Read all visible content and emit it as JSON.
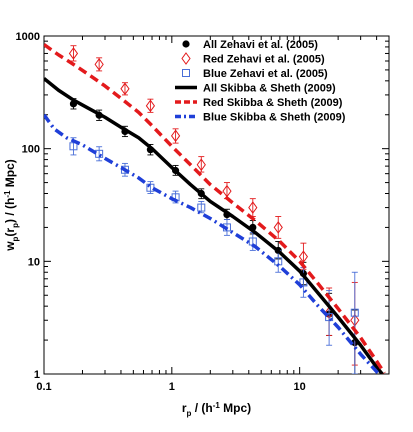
{
  "chart_data": {
    "type": "line",
    "xscale": "log",
    "yscale": "log",
    "xlim": [
      0.1,
      50
    ],
    "ylim": [
      1,
      1000
    ],
    "xlabel": {
      "main": "r",
      "sub": "p",
      "rest": " / (h",
      "sup": "-1",
      "end": " Mpc)"
    },
    "ylabel": {
      "p1": "w",
      "sub1": "p",
      "p2": "(r",
      "sub2": "p",
      "p3": ") / (h",
      "sup": "-1",
      "p4": " Mpc)"
    },
    "xticks": [
      {
        "v": 0.1,
        "label": "0.1"
      },
      {
        "v": 1,
        "label": "1"
      },
      {
        "v": 10,
        "label": "10"
      }
    ],
    "yticks": [
      {
        "v": 1,
        "label": "1"
      },
      {
        "v": 10,
        "label": "10"
      },
      {
        "v": 100,
        "label": "100"
      },
      {
        "v": 1000,
        "label": "1000"
      }
    ],
    "legend_position": "top-right",
    "series": [
      {
        "name": "All Zehavi et al. (2005)",
        "kind": "points",
        "marker": "circle",
        "color": "#000000",
        "points": [
          {
            "x": 0.17,
            "y": 250,
            "lo": 225,
            "hi": 278
          },
          {
            "x": 0.27,
            "y": 198,
            "lo": 178,
            "hi": 220
          },
          {
            "x": 0.43,
            "y": 142,
            "lo": 128,
            "hi": 158
          },
          {
            "x": 0.68,
            "y": 98,
            "lo": 88,
            "hi": 109
          },
          {
            "x": 1.07,
            "y": 64,
            "lo": 58,
            "hi": 71
          },
          {
            "x": 1.7,
            "y": 40,
            "lo": 36,
            "hi": 44
          },
          {
            "x": 2.7,
            "y": 26,
            "lo": 23.5,
            "hi": 29
          },
          {
            "x": 4.3,
            "y": 20,
            "lo": 17.5,
            "hi": 23
          },
          {
            "x": 6.8,
            "y": 12.5,
            "lo": 10.5,
            "hi": 15
          },
          {
            "x": 10.7,
            "y": 7.8,
            "lo": 6.2,
            "hi": 9.8
          },
          {
            "x": 17,
            "y": 3.4,
            "lo": 2.2,
            "hi": 5.2
          },
          {
            "x": 27,
            "y": 1.9,
            "lo": 1,
            "hi": 3.7
          }
        ]
      },
      {
        "name": "Red Zehavi et al. (2005)",
        "kind": "points",
        "marker": "diamond",
        "color": "#e31a1c",
        "points": [
          {
            "x": 0.17,
            "y": 700,
            "lo": 600,
            "hi": 820
          },
          {
            "x": 0.27,
            "y": 560,
            "lo": 490,
            "hi": 640
          },
          {
            "x": 0.43,
            "y": 340,
            "lo": 300,
            "hi": 385
          },
          {
            "x": 0.68,
            "y": 240,
            "lo": 210,
            "hi": 275
          },
          {
            "x": 1.07,
            "y": 130,
            "lo": 112,
            "hi": 150
          },
          {
            "x": 1.7,
            "y": 72,
            "lo": 62,
            "hi": 85
          },
          {
            "x": 2.7,
            "y": 42,
            "lo": 36,
            "hi": 50
          },
          {
            "x": 4.3,
            "y": 30,
            "lo": 25,
            "hi": 36
          },
          {
            "x": 6.8,
            "y": 20,
            "lo": 16,
            "hi": 25
          },
          {
            "x": 10.7,
            "y": 11,
            "lo": 8.5,
            "hi": 14.5
          },
          {
            "x": 17,
            "y": 3.5,
            "lo": 2.2,
            "hi": 5.8
          },
          {
            "x": 27,
            "y": 3,
            "lo": 1.2,
            "hi": 6.5
          }
        ]
      },
      {
        "name": "Blue Zehavi et al. (2005)",
        "kind": "points",
        "marker": "square",
        "color": "#4a6fd8",
        "points": [
          {
            "x": 0.17,
            "y": 105,
            "lo": 88,
            "hi": 125
          },
          {
            "x": 0.27,
            "y": 90,
            "lo": 78,
            "hi": 104
          },
          {
            "x": 0.43,
            "y": 65,
            "lo": 57,
            "hi": 74
          },
          {
            "x": 0.68,
            "y": 45,
            "lo": 40,
            "hi": 51
          },
          {
            "x": 1.07,
            "y": 37,
            "lo": 33,
            "hi": 42
          },
          {
            "x": 1.7,
            "y": 30,
            "lo": 27,
            "hi": 34
          },
          {
            "x": 2.7,
            "y": 20,
            "lo": 17,
            "hi": 23.5
          },
          {
            "x": 4.3,
            "y": 15,
            "lo": 12.5,
            "hi": 18
          },
          {
            "x": 6.8,
            "y": 10,
            "lo": 8,
            "hi": 12.5
          },
          {
            "x": 10.7,
            "y": 6.5,
            "lo": 4.8,
            "hi": 8.8
          },
          {
            "x": 17,
            "y": 3.2,
            "lo": 1.8,
            "hi": 5.5
          },
          {
            "x": 27,
            "y": 3.5,
            "lo": 1,
            "hi": 8
          }
        ]
      },
      {
        "name": "All Skibba & Sheth (2009)",
        "kind": "line",
        "dash": "solid",
        "color": "#000000",
        "width": 3.5,
        "x": [
          0.1,
          0.13,
          0.17,
          0.22,
          0.3,
          0.4,
          0.55,
          0.7,
          1.0,
          1.4,
          2.0,
          3.0,
          4.5,
          7.0,
          10,
          14,
          20,
          30,
          40,
          46
        ],
        "y": [
          420,
          330,
          270,
          230,
          190,
          155,
          125,
          100,
          68,
          48,
          34,
          25,
          18,
          12,
          8.2,
          5.2,
          3.2,
          1.8,
          1.15,
          0.95
        ]
      },
      {
        "name": "Red Skibba & Sheth (2009)",
        "kind": "line",
        "dash": "dash",
        "color": "#e31a1c",
        "width": 3.5,
        "x": [
          0.1,
          0.13,
          0.17,
          0.22,
          0.3,
          0.4,
          0.55,
          0.7,
          1.0,
          1.4,
          2.0,
          3.0,
          4.5,
          7.0,
          10,
          14,
          20,
          30,
          40,
          46
        ],
        "y": [
          840,
          680,
          560,
          460,
          360,
          280,
          210,
          160,
          105,
          72,
          48,
          33,
          23,
          15,
          10,
          6.3,
          3.8,
          2.1,
          1.3,
          1.02
        ]
      },
      {
        "name": "Blue Skibba & Sheth (2009)",
        "kind": "line",
        "dash": "dashdot",
        "color": "#1f3fd8",
        "width": 3.5,
        "x": [
          0.1,
          0.12,
          0.15,
          0.2,
          0.3,
          0.4,
          0.55,
          0.7,
          1.0,
          1.4,
          2.0,
          3.0,
          4.5,
          7.0,
          10,
          14,
          20,
          30,
          40,
          46
        ],
        "y": [
          200,
          150,
          125,
          108,
          82,
          68,
          55,
          45,
          36,
          30,
          24,
          18,
          13.5,
          9,
          6.2,
          4,
          2.6,
          1.5,
          1.05,
          0.9
        ]
      }
    ]
  }
}
